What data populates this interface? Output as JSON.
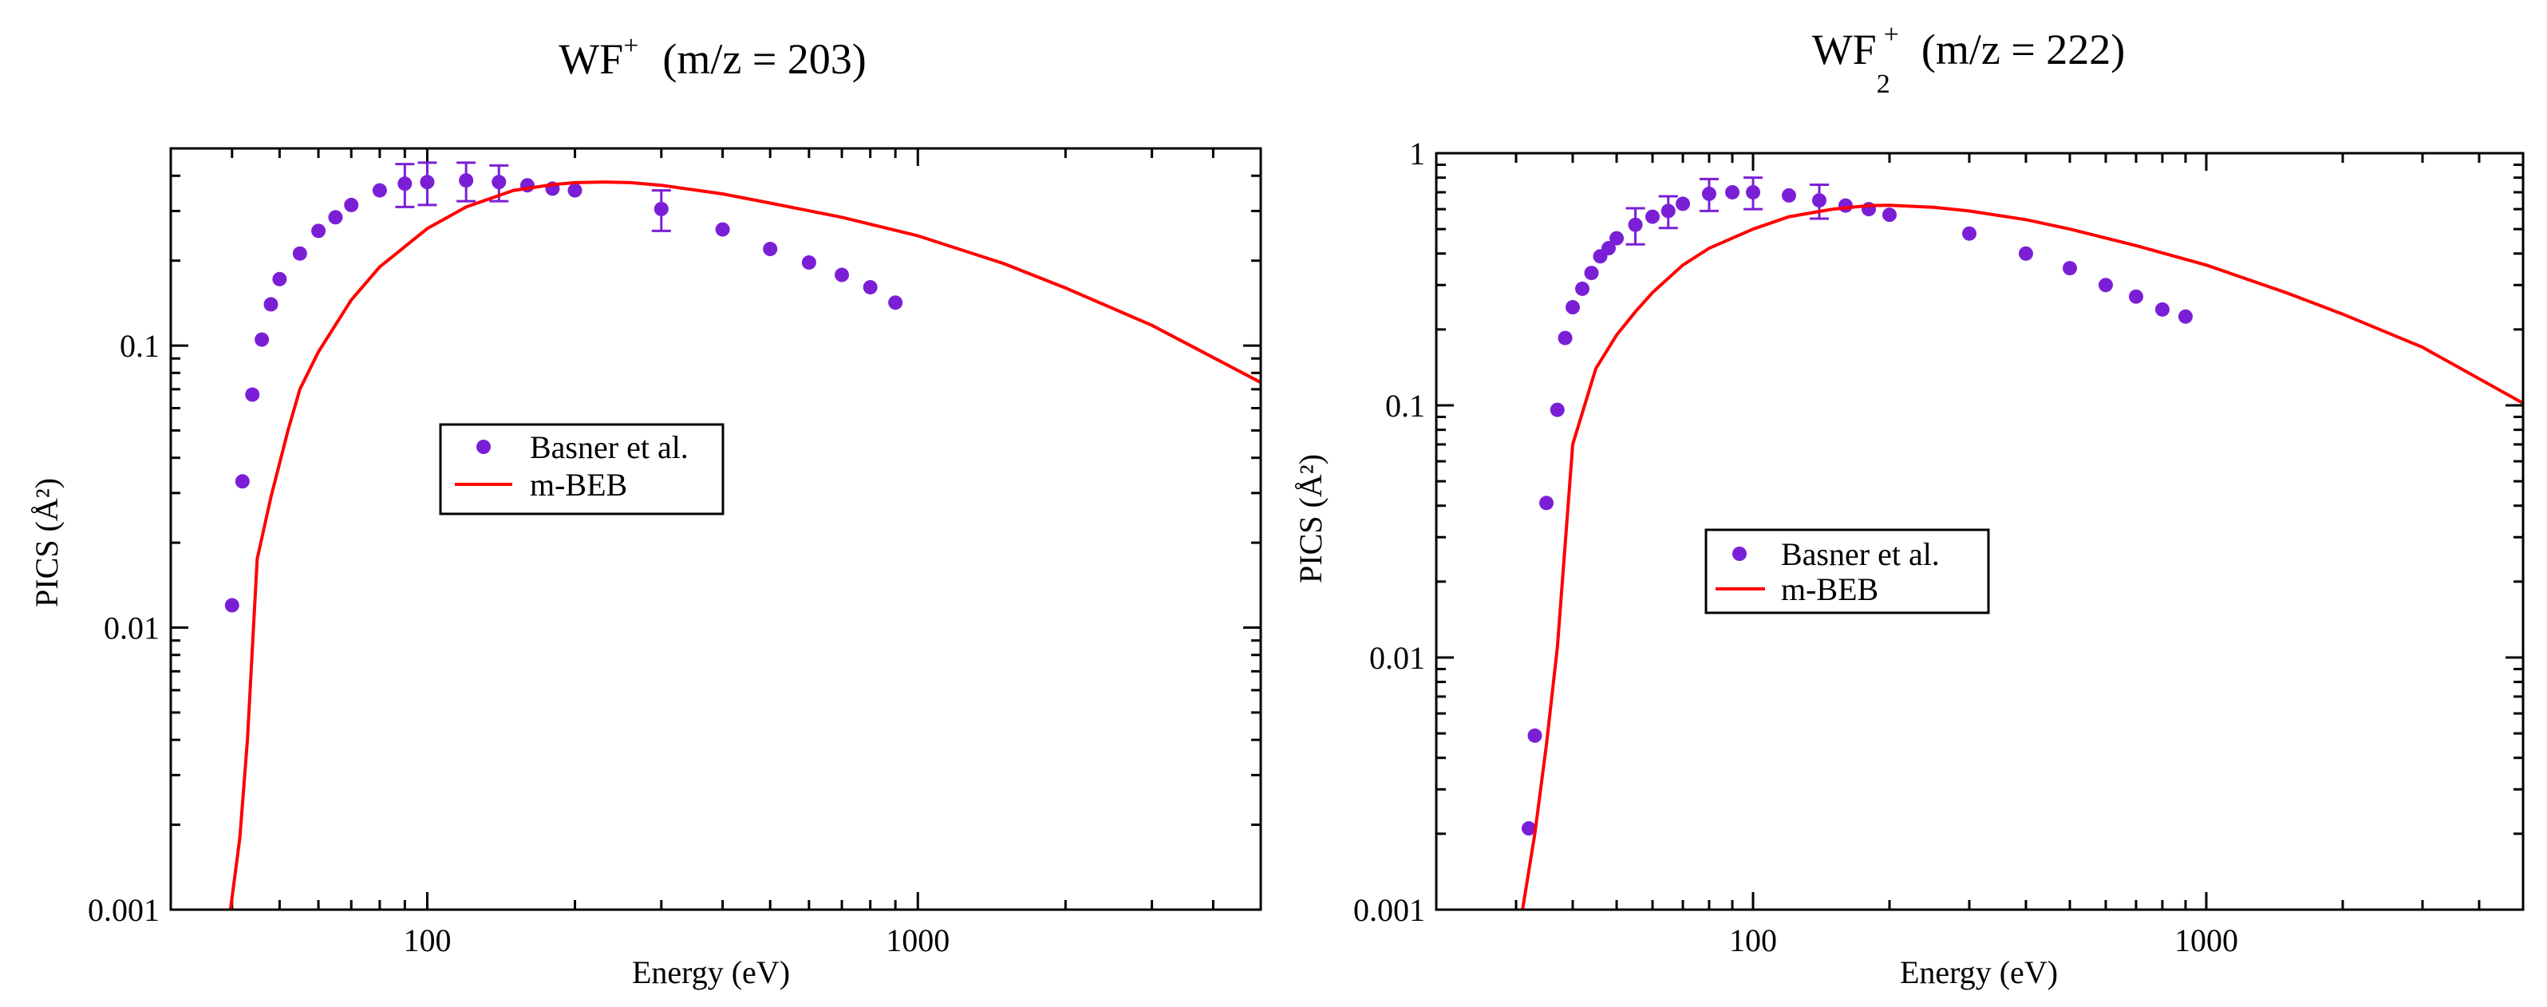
{
  "charts": [
    {
      "title_text": "WF",
      "title_sup": "+",
      "title_rest": "(m/z = 203)",
      "ylabel": "PICS (Å²)",
      "xlabel": "Energy (eV)",
      "legend": {
        "series": "Basner et al.",
        "model": "m-BEB"
      }
    },
    {
      "title_text": "WF",
      "title_sub": "2",
      "title_sup": "+",
      "title_rest": "(m/z = 222)",
      "ylabel": "PICS (Å²)",
      "xlabel": "Energy (eV)",
      "legend": {
        "series": "Basner et al.",
        "model": "m-BEB"
      }
    }
  ],
  "colors": {
    "points": "#7b1fd6",
    "line": "#ff0000",
    "axis": "#000000"
  },
  "chart_data": [
    {
      "type": "scatter",
      "title": "WF+ (m/z = 203)",
      "xlabel": "Energy (eV)",
      "ylabel": "PICS (Å²)",
      "xscale": "log",
      "yscale": "log",
      "xlim": [
        30,
        5000
      ],
      "ylim": [
        0.001,
        0.5
      ],
      "xticks": [
        {
          "value": 100,
          "label": "100"
        },
        {
          "value": 1000,
          "label": "1000"
        }
      ],
      "yticks": [
        {
          "value": 0.001,
          "label": "0.001"
        },
        {
          "value": 0.01,
          "label": "0.01"
        },
        {
          "value": 0.1,
          "label": "0.1"
        }
      ],
      "legend_position": "center-left",
      "series": [
        {
          "name": "Basner et al.",
          "kind": "points",
          "x": [
            40,
            42,
            44,
            46,
            48,
            50,
            55,
            60,
            65,
            70,
            80,
            90,
            100,
            120,
            140,
            160,
            180,
            200,
            300,
            400,
            500,
            600,
            700,
            800,
            900
          ],
          "y": [
            0.012,
            0.033,
            0.067,
            0.105,
            0.14,
            0.172,
            0.212,
            0.255,
            0.285,
            0.315,
            0.355,
            0.375,
            0.38,
            0.385,
            0.38,
            0.37,
            0.36,
            0.355,
            0.305,
            0.258,
            0.22,
            0.197,
            0.178,
            0.161,
            0.142
          ],
          "err": [
            0,
            0,
            0,
            0,
            0,
            0,
            0,
            0,
            0,
            0,
            0,
            0.065,
            0.065,
            0.06,
            0.055,
            0,
            0,
            0,
            0.05,
            0,
            0,
            0,
            0,
            0,
            0
          ]
        },
        {
          "name": "m-BEB",
          "kind": "line",
          "x": [
            39.7,
            40.5,
            41.5,
            43,
            45,
            48,
            52,
            55,
            60,
            70,
            80,
            100,
            120,
            150,
            180,
            200,
            230,
            260,
            300,
            400,
            500,
            700,
            1000,
            1500,
            2000,
            3000,
            5000
          ],
          "y": [
            0.001,
            0.0013,
            0.0018,
            0.004,
            0.0175,
            0.029,
            0.05,
            0.07,
            0.095,
            0.145,
            0.19,
            0.26,
            0.31,
            0.355,
            0.372,
            0.378,
            0.38,
            0.378,
            0.37,
            0.345,
            0.32,
            0.285,
            0.245,
            0.195,
            0.16,
            0.118,
            0.074
          ]
        }
      ]
    },
    {
      "type": "scatter",
      "title": "WF2+ (m/z = 222)",
      "xlabel": "Energy (eV)",
      "ylabel": "PICS (Å²)",
      "xscale": "log",
      "yscale": "log",
      "xlim": [
        20,
        5000
      ],
      "ylim": [
        0.001,
        1
      ],
      "xticks": [
        {
          "value": 100,
          "label": "100"
        },
        {
          "value": 1000,
          "label": "1000"
        }
      ],
      "yticks": [
        {
          "value": 0.001,
          "label": "0.001"
        },
        {
          "value": 0.01,
          "label": "0.01"
        },
        {
          "value": 0.1,
          "label": "0.1"
        },
        {
          "value": 1,
          "label": "1"
        }
      ],
      "legend_position": "center",
      "series": [
        {
          "name": "Basner et al.",
          "kind": "points",
          "x": [
            32,
            33,
            35,
            37,
            38.5,
            40,
            42,
            44,
            46,
            48,
            50,
            55,
            60,
            65,
            70,
            80,
            90,
            100,
            120,
            140,
            160,
            180,
            200,
            300,
            400,
            500,
            600,
            700,
            800,
            900
          ],
          "y": [
            0.0021,
            0.0049,
            0.041,
            0.096,
            0.185,
            0.245,
            0.29,
            0.335,
            0.39,
            0.42,
            0.46,
            0.52,
            0.56,
            0.59,
            0.63,
            0.69,
            0.7,
            0.7,
            0.68,
            0.65,
            0.62,
            0.6,
            0.57,
            0.48,
            0.4,
            0.35,
            0.3,
            0.27,
            0.24,
            0.225
          ],
          "err": [
            0,
            0,
            0,
            0,
            0,
            0,
            0,
            0,
            0,
            0,
            0,
            0.085,
            0,
            0.085,
            0,
            0.1,
            0,
            0.1,
            0,
            0.1,
            0,
            0,
            0,
            0,
            0,
            0,
            0,
            0,
            0,
            0
          ]
        },
        {
          "name": "m-BEB",
          "kind": "line",
          "x": [
            31,
            33,
            35,
            37,
            40,
            45,
            50,
            55,
            60,
            70,
            80,
            100,
            120,
            150,
            180,
            200,
            250,
            300,
            400,
            500,
            700,
            1000,
            1500,
            2000,
            3000,
            5000
          ],
          "y": [
            0.001,
            0.002,
            0.0045,
            0.011,
            0.07,
            0.14,
            0.19,
            0.235,
            0.28,
            0.36,
            0.42,
            0.5,
            0.56,
            0.6,
            0.62,
            0.622,
            0.61,
            0.59,
            0.545,
            0.5,
            0.43,
            0.36,
            0.28,
            0.23,
            0.17,
            0.102
          ]
        }
      ]
    }
  ]
}
